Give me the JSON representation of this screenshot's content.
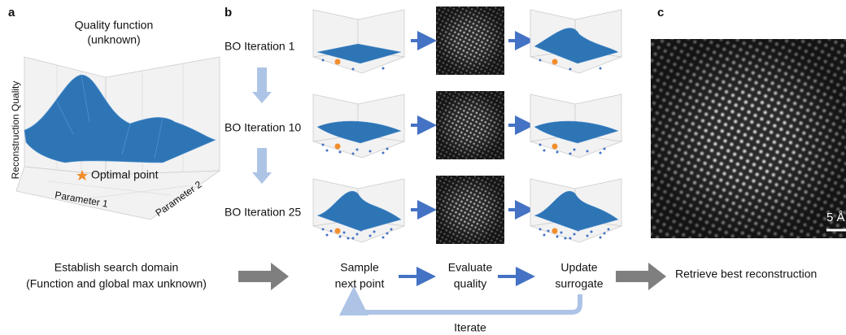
{
  "panels": {
    "a": {
      "label": "a",
      "title": [
        "Quality function",
        "(unknown)"
      ],
      "z_axis": "Reconstruction Quality",
      "x_axis": "Parameter 1",
      "y_axis": "Parameter 2",
      "annotation": "Optimal point"
    },
    "b": {
      "label": "b",
      "iterations": [
        "BO Iteration 1",
        "BO Iteration 10",
        "BO Iteration 25"
      ]
    },
    "c": {
      "label": "c",
      "scale_bar": "5 Å"
    }
  },
  "workflow": {
    "steps": [
      [
        "Establish search domain",
        "(Function and global max unknown)"
      ],
      [
        "Sample",
        "next point"
      ],
      [
        "Evaluate",
        "quality"
      ],
      [
        "Update",
        "surrogate"
      ],
      [
        "Retrieve best reconstruction"
      ]
    ],
    "loop": "Iterate"
  }
}
